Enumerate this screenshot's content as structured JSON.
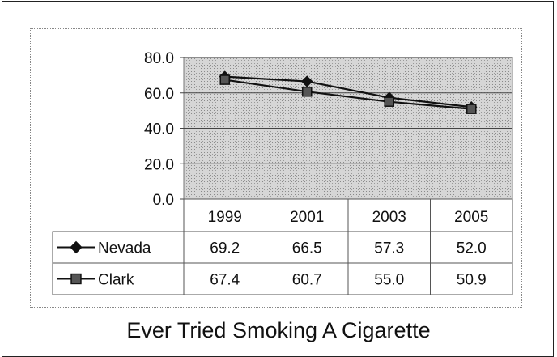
{
  "chart_data": {
    "type": "line",
    "title": "Ever Tried Smoking A Cigarette",
    "categories": [
      "1999",
      "2001",
      "2003",
      "2005"
    ],
    "series": [
      {
        "name": "Nevada",
        "marker": "diamond",
        "values": [
          69.2,
          66.5,
          57.3,
          52.0
        ],
        "value_labels": [
          "69.2",
          "66.5",
          "57.3",
          "52.0"
        ]
      },
      {
        "name": "Clark",
        "marker": "square",
        "values": [
          67.4,
          60.7,
          55.0,
          50.9
        ],
        "value_labels": [
          "67.4",
          "60.7",
          "55.0",
          "50.9"
        ]
      }
    ],
    "ylim": [
      0,
      80
    ],
    "yticks": [
      0,
      20,
      40,
      60,
      80
    ],
    "ytick_labels": [
      "0.0",
      "20.0",
      "40.0",
      "60.0",
      "80.0"
    ],
    "xlabel": "",
    "ylabel": "",
    "grid": true,
    "legend": "data-table",
    "colors": {
      "line": "#111111",
      "plot_background": "#cfcfcf"
    }
  }
}
